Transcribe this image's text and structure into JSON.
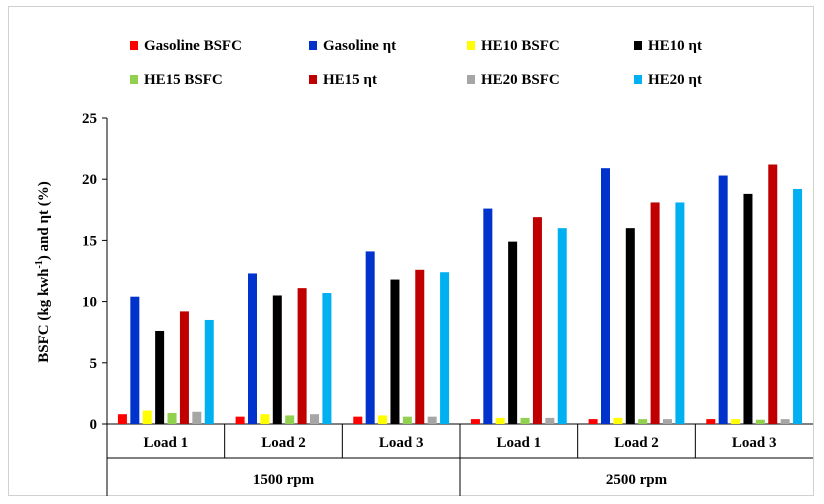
{
  "chart_data": {
    "type": "bar",
    "title": "",
    "xlabel": "",
    "ylabel_main": "BSFC (kg kwh",
    "ylabel_sup": "-1",
    "ylabel_tail": ") and ηt (%)",
    "ylim": [
      0,
      25
    ],
    "yticks": [
      0,
      5,
      10,
      15,
      20,
      25
    ],
    "grid": false,
    "legend_position": "top",
    "categories": [
      "Load 1",
      "Load 2",
      "Load 3",
      "Load 1",
      "Load 2",
      "Load 3"
    ],
    "groups": [
      {
        "label": "1500 rpm",
        "span": 3
      },
      {
        "label": "2500 rpm",
        "span": 3
      }
    ],
    "series": [
      {
        "name": "Gasoline BSFC",
        "color": "#ff0000",
        "values": [
          0.8,
          0.6,
          0.6,
          0.4,
          0.4,
          0.4
        ]
      },
      {
        "name": "Gasoline ηt",
        "color": "#0033cc",
        "values": [
          10.4,
          12.3,
          14.1,
          17.6,
          20.9,
          20.3
        ]
      },
      {
        "name": "HE10 BSFC",
        "color": "#ffff00",
        "values": [
          1.1,
          0.8,
          0.7,
          0.5,
          0.5,
          0.4
        ]
      },
      {
        "name": "HE10 ηt",
        "color": "#000000",
        "values": [
          7.6,
          10.5,
          11.8,
          14.9,
          16.0,
          18.8
        ]
      },
      {
        "name": "HE15 BSFC",
        "color": "#92d050",
        "values": [
          0.9,
          0.7,
          0.6,
          0.5,
          0.4,
          0.35
        ]
      },
      {
        "name": "HE15 ηt",
        "color": "#c00000",
        "values": [
          9.2,
          11.1,
          12.6,
          16.9,
          18.1,
          21.2
        ]
      },
      {
        "name": "HE20 BSFC",
        "color": "#a6a6a6",
        "values": [
          1.0,
          0.8,
          0.6,
          0.5,
          0.4,
          0.4
        ]
      },
      {
        "name": "HE20 ηt",
        "color": "#00b0f0",
        "values": [
          8.5,
          10.7,
          12.4,
          16.0,
          18.1,
          19.2
        ]
      }
    ]
  }
}
